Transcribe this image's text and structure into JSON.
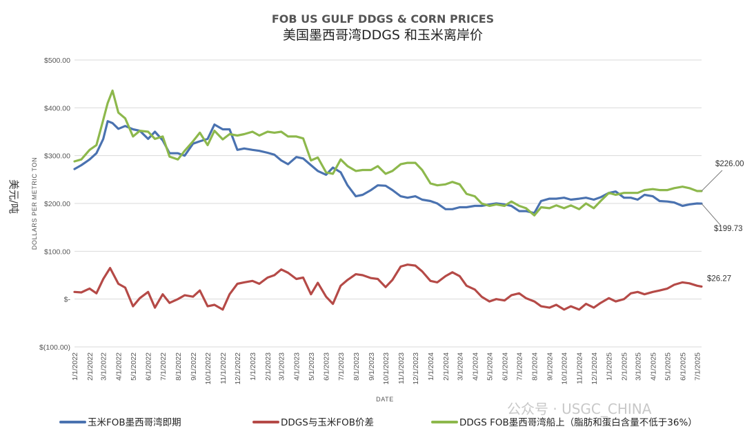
{
  "chart_data": {
    "type": "line",
    "title": "FOB US GULF DDGS & CORN PRICES",
    "subtitle": "美国墨西哥湾DDGS 和玉米离岸价",
    "ylabel": "DOLLARS PER METRIC TON",
    "ylabel_unit_cn": "美元/吨",
    "xlabel": "DATE",
    "ylim": [
      -100,
      500
    ],
    "y_ticks": [
      {
        "value": 500,
        "label": "$500.00"
      },
      {
        "value": 400,
        "label": "$400.00"
      },
      {
        "value": 300,
        "label": "$300.00"
      },
      {
        "value": 200,
        "label": "$200.00"
      },
      {
        "value": 100,
        "label": "$100.00"
      },
      {
        "value": 0,
        "label": "$-"
      },
      {
        "value": -100,
        "label": "$(100.00)"
      }
    ],
    "x_ticks": [
      "1/1/2022",
      "2/1/2022",
      "3/1/2022",
      "4/1/2022",
      "5/1/2022",
      "6/1/2022",
      "7/1/2022",
      "8/1/2022",
      "9/1/2022",
      "10/1/2022",
      "11/1/2022",
      "12/1/2022",
      "1/1/2023",
      "2/1/2023",
      "3/1/2023",
      "4/1/2023",
      "5/1/2023",
      "6/1/2023",
      "7/1/2023",
      "8/1/2023",
      "9/1/2023",
      "10/1/2023",
      "11/1/2023",
      "12/1/2023",
      "1/1/2024",
      "2/1/2024",
      "3/1/2024",
      "4/1/2024",
      "5/1/2024",
      "6/1/2024",
      "7/1/2024",
      "8/1/2024",
      "9/1/2024",
      "10/1/2024",
      "11/1/2024",
      "12/1/2024",
      "1/1/2025",
      "2/1/2025",
      "3/1/2025",
      "4/1/2025",
      "5/1/2025",
      "6/1/2025",
      "7/1/2025"
    ],
    "grid": true,
    "legend_position": "bottom",
    "series": [
      {
        "name": "玉米FOB墨西哥湾即期",
        "color": "#4a72b0",
        "points": [
          [
            "1/1/2022",
            272
          ],
          [
            "1/15/2022",
            280
          ],
          [
            "2/1/2022",
            292
          ],
          [
            "2/15/2022",
            305
          ],
          [
            "3/1/2022",
            335
          ],
          [
            "3/10/2022",
            372
          ],
          [
            "3/20/2022",
            368
          ],
          [
            "4/1/2022",
            356
          ],
          [
            "4/15/2022",
            362
          ],
          [
            "5/1/2022",
            355
          ],
          [
            "5/15/2022",
            352
          ],
          [
            "6/1/2022",
            335
          ],
          [
            "6/15/2022",
            350
          ],
          [
            "7/1/2022",
            332
          ],
          [
            "7/15/2022",
            305
          ],
          [
            "8/1/2022",
            305
          ],
          [
            "8/15/2022",
            300
          ],
          [
            "9/1/2022",
            325
          ],
          [
            "9/15/2022",
            330
          ],
          [
            "10/1/2022",
            335
          ],
          [
            "10/15/2022",
            365
          ],
          [
            "11/1/2022",
            355
          ],
          [
            "11/15/2022",
            355
          ],
          [
            "12/1/2022",
            312
          ],
          [
            "12/15/2022",
            315
          ],
          [
            "1/1/2023",
            312
          ],
          [
            "1/15/2023",
            310
          ],
          [
            "2/1/2023",
            306
          ],
          [
            "2/15/2023",
            302
          ],
          [
            "3/1/2023",
            290
          ],
          [
            "3/15/2023",
            282
          ],
          [
            "4/1/2023",
            297
          ],
          [
            "4/15/2023",
            294
          ],
          [
            "5/1/2023",
            280
          ],
          [
            "5/15/2023",
            268
          ],
          [
            "6/1/2023",
            260
          ],
          [
            "6/15/2023",
            275
          ],
          [
            "7/1/2023",
            265
          ],
          [
            "7/15/2023",
            238
          ],
          [
            "8/1/2023",
            215
          ],
          [
            "8/15/2023",
            218
          ],
          [
            "9/1/2023",
            228
          ],
          [
            "9/15/2023",
            238
          ],
          [
            "10/1/2023",
            237
          ],
          [
            "10/15/2023",
            228
          ],
          [
            "11/1/2023",
            215
          ],
          [
            "11/15/2023",
            212
          ],
          [
            "12/1/2023",
            215
          ],
          [
            "12/15/2023",
            208
          ],
          [
            "1/1/2024",
            205
          ],
          [
            "1/15/2024",
            200
          ],
          [
            "2/1/2024",
            188
          ],
          [
            "2/15/2024",
            188
          ],
          [
            "3/1/2024",
            192
          ],
          [
            "3/15/2024",
            192
          ],
          [
            "4/1/2024",
            195
          ],
          [
            "4/15/2024",
            195
          ],
          [
            "5/1/2024",
            198
          ],
          [
            "5/15/2024",
            200
          ],
          [
            "6/1/2024",
            198
          ],
          [
            "6/15/2024",
            195
          ],
          [
            "7/1/2024",
            184
          ],
          [
            "7/15/2024",
            184
          ],
          [
            "8/1/2024",
            180
          ],
          [
            "8/15/2024",
            205
          ],
          [
            "9/1/2024",
            210
          ],
          [
            "9/15/2024",
            210
          ],
          [
            "10/1/2024",
            212
          ],
          [
            "10/15/2024",
            208
          ],
          [
            "11/1/2024",
            210
          ],
          [
            "11/15/2024",
            212
          ],
          [
            "12/1/2024",
            208
          ],
          [
            "12/15/2024",
            213
          ],
          [
            "1/1/2025",
            222
          ],
          [
            "1/15/2025",
            225
          ],
          [
            "2/1/2025",
            212
          ],
          [
            "2/15/2025",
            212
          ],
          [
            "3/1/2025",
            208
          ],
          [
            "3/15/2025",
            218
          ],
          [
            "4/1/2025",
            215
          ],
          [
            "4/15/2025",
            205
          ],
          [
            "5/1/2025",
            204
          ],
          [
            "5/15/2025",
            202
          ],
          [
            "6/1/2025",
            195
          ],
          [
            "6/15/2025",
            198
          ],
          [
            "7/1/2025",
            200
          ],
          [
            "7/10/2025",
            199.73
          ]
        ]
      },
      {
        "name": "DDGS与玉米FOB价差",
        "color": "#b54a47",
        "points": [
          [
            "1/1/2022",
            15
          ],
          [
            "1/15/2022",
            14
          ],
          [
            "2/1/2022",
            22
          ],
          [
            "2/15/2022",
            12
          ],
          [
            "3/1/2022",
            42
          ],
          [
            "3/15/2022",
            65
          ],
          [
            "4/1/2022",
            32
          ],
          [
            "4/15/2022",
            24
          ],
          [
            "5/1/2022",
            -15
          ],
          [
            "5/15/2022",
            2
          ],
          [
            "6/1/2022",
            15
          ],
          [
            "6/15/2022",
            -18
          ],
          [
            "7/1/2022",
            10
          ],
          [
            "7/15/2022",
            -8
          ],
          [
            "8/1/2022",
            0
          ],
          [
            "8/15/2022",
            8
          ],
          [
            "9/1/2022",
            5
          ],
          [
            "9/15/2022",
            18
          ],
          [
            "10/1/2022",
            -15
          ],
          [
            "10/15/2022",
            -12
          ],
          [
            "11/1/2022",
            -22
          ],
          [
            "11/15/2022",
            10
          ],
          [
            "12/1/2022",
            32
          ],
          [
            "12/15/2022",
            35
          ],
          [
            "1/1/2023",
            38
          ],
          [
            "1/15/2023",
            32
          ],
          [
            "2/1/2023",
            45
          ],
          [
            "2/15/2023",
            50
          ],
          [
            "3/1/2023",
            62
          ],
          [
            "3/15/2023",
            55
          ],
          [
            "4/1/2023",
            42
          ],
          [
            "4/15/2023",
            45
          ],
          [
            "5/1/2023",
            10
          ],
          [
            "5/15/2023",
            34
          ],
          [
            "6/1/2023",
            5
          ],
          [
            "6/15/2023",
            -10
          ],
          [
            "7/1/2023",
            28
          ],
          [
            "7/15/2023",
            40
          ],
          [
            "8/1/2023",
            52
          ],
          [
            "8/15/2023",
            50
          ],
          [
            "9/1/2023",
            44
          ],
          [
            "9/15/2023",
            42
          ],
          [
            "10/1/2023",
            25
          ],
          [
            "10/15/2023",
            40
          ],
          [
            "11/1/2023",
            68
          ],
          [
            "11/15/2023",
            72
          ],
          [
            "12/1/2023",
            70
          ],
          [
            "12/15/2023",
            58
          ],
          [
            "1/1/2024",
            38
          ],
          [
            "1/15/2024",
            35
          ],
          [
            "2/1/2024",
            48
          ],
          [
            "2/15/2024",
            56
          ],
          [
            "3/1/2024",
            48
          ],
          [
            "3/15/2024",
            28
          ],
          [
            "4/1/2024",
            20
          ],
          [
            "4/15/2024",
            5
          ],
          [
            "5/1/2024",
            -5
          ],
          [
            "5/15/2024",
            0
          ],
          [
            "6/1/2024",
            -3
          ],
          [
            "6/15/2024",
            8
          ],
          [
            "7/1/2024",
            12
          ],
          [
            "7/15/2024",
            2
          ],
          [
            "8/1/2024",
            -5
          ],
          [
            "8/15/2024",
            -15
          ],
          [
            "9/1/2024",
            -18
          ],
          [
            "9/15/2024",
            -12
          ],
          [
            "10/1/2024",
            -22
          ],
          [
            "10/15/2024",
            -15
          ],
          [
            "11/1/2024",
            -22
          ],
          [
            "11/15/2024",
            -10
          ],
          [
            "12/1/2024",
            -18
          ],
          [
            "12/15/2024",
            -8
          ],
          [
            "1/1/2025",
            2
          ],
          [
            "1/15/2025",
            -5
          ],
          [
            "2/1/2025",
            0
          ],
          [
            "2/15/2025",
            12
          ],
          [
            "3/1/2025",
            15
          ],
          [
            "3/15/2025",
            10
          ],
          [
            "4/1/2025",
            15
          ],
          [
            "4/15/2025",
            18
          ],
          [
            "5/1/2025",
            22
          ],
          [
            "5/15/2025",
            30
          ],
          [
            "6/1/2025",
            35
          ],
          [
            "6/15/2025",
            33
          ],
          [
            "7/1/2025",
            28
          ],
          [
            "7/10/2025",
            26.27
          ]
        ]
      },
      {
        "name": "DDGS FOB墨西哥湾船上（脂肪和蛋白含量不低于36%）",
        "color": "#8db84c",
        "points": [
          [
            "1/1/2022",
            288
          ],
          [
            "1/15/2022",
            292
          ],
          [
            "2/1/2022",
            312
          ],
          [
            "2/15/2022",
            322
          ],
          [
            "3/1/2022",
            375
          ],
          [
            "3/10/2022",
            410
          ],
          [
            "3/20/2022",
            436
          ],
          [
            "4/1/2022",
            390
          ],
          [
            "4/15/2022",
            378
          ],
          [
            "5/1/2022",
            340
          ],
          [
            "5/15/2022",
            352
          ],
          [
            "6/1/2022",
            350
          ],
          [
            "6/15/2022",
            335
          ],
          [
            "7/1/2022",
            340
          ],
          [
            "7/15/2022",
            298
          ],
          [
            "8/1/2022",
            292
          ],
          [
            "8/15/2022",
            310
          ],
          [
            "9/1/2022",
            330
          ],
          [
            "9/15/2022",
            348
          ],
          [
            "10/1/2022",
            322
          ],
          [
            "10/15/2022",
            352
          ],
          [
            "11/1/2022",
            334
          ],
          [
            "11/15/2022",
            345
          ],
          [
            "12/1/2022",
            342
          ],
          [
            "12/15/2022",
            345
          ],
          [
            "1/1/2023",
            350
          ],
          [
            "1/15/2023",
            342
          ],
          [
            "2/1/2023",
            350
          ],
          [
            "2/15/2023",
            348
          ],
          [
            "3/1/2023",
            350
          ],
          [
            "3/15/2023",
            340
          ],
          [
            "4/1/2023",
            340
          ],
          [
            "4/15/2023",
            336
          ],
          [
            "5/1/2023",
            290
          ],
          [
            "5/15/2023",
            296
          ],
          [
            "6/1/2023",
            265
          ],
          [
            "6/15/2023",
            262
          ],
          [
            "7/1/2023",
            292
          ],
          [
            "7/15/2023",
            278
          ],
          [
            "8/1/2023",
            268
          ],
          [
            "8/15/2023",
            270
          ],
          [
            "9/1/2023",
            270
          ],
          [
            "9/15/2023",
            278
          ],
          [
            "10/1/2023",
            262
          ],
          [
            "10/15/2023",
            268
          ],
          [
            "11/1/2023",
            282
          ],
          [
            "11/15/2023",
            285
          ],
          [
            "12/1/2023",
            285
          ],
          [
            "12/15/2023",
            270
          ],
          [
            "1/1/2024",
            242
          ],
          [
            "1/15/2024",
            238
          ],
          [
            "2/1/2024",
            240
          ],
          [
            "2/15/2024",
            245
          ],
          [
            "3/1/2024",
            240
          ],
          [
            "3/15/2024",
            220
          ],
          [
            "4/1/2024",
            215
          ],
          [
            "4/15/2024",
            200
          ],
          [
            "5/1/2024",
            195
          ],
          [
            "5/15/2024",
            198
          ],
          [
            "6/1/2024",
            195
          ],
          [
            "6/15/2024",
            204
          ],
          [
            "7/1/2024",
            195
          ],
          [
            "7/15/2024",
            190
          ],
          [
            "8/1/2024",
            175
          ],
          [
            "8/15/2024",
            192
          ],
          [
            "9/1/2024",
            190
          ],
          [
            "9/15/2024",
            196
          ],
          [
            "10/1/2024",
            190
          ],
          [
            "10/15/2024",
            196
          ],
          [
            "11/1/2024",
            188
          ],
          [
            "11/15/2024",
            200
          ],
          [
            "12/1/2024",
            190
          ],
          [
            "12/15/2024",
            205
          ],
          [
            "1/1/2025",
            222
          ],
          [
            "1/15/2025",
            218
          ],
          [
            "2/1/2025",
            222
          ],
          [
            "2/15/2025",
            222
          ],
          [
            "3/1/2025",
            222
          ],
          [
            "3/15/2025",
            228
          ],
          [
            "4/1/2025",
            230
          ],
          [
            "4/15/2025",
            228
          ],
          [
            "5/1/2025",
            228
          ],
          [
            "5/15/2025",
            232
          ],
          [
            "6/1/2025",
            235
          ],
          [
            "6/15/2025",
            232
          ],
          [
            "7/1/2025",
            226
          ],
          [
            "7/10/2025",
            226
          ]
        ]
      }
    ],
    "annotations": [
      {
        "label": "$226.00",
        "value": 226,
        "series": "DDGS FOB墨西哥湾船上（脂肪和蛋白含量不低于36%）"
      },
      {
        "label": "$199.73",
        "value": 199.73,
        "series": "玉米FOB墨西哥湾即期"
      },
      {
        "label": "$26.27",
        "value": 26.27,
        "series": "DDGS与玉米FOB价差"
      }
    ]
  },
  "watermark": "公众号 · USGC_CHINA"
}
